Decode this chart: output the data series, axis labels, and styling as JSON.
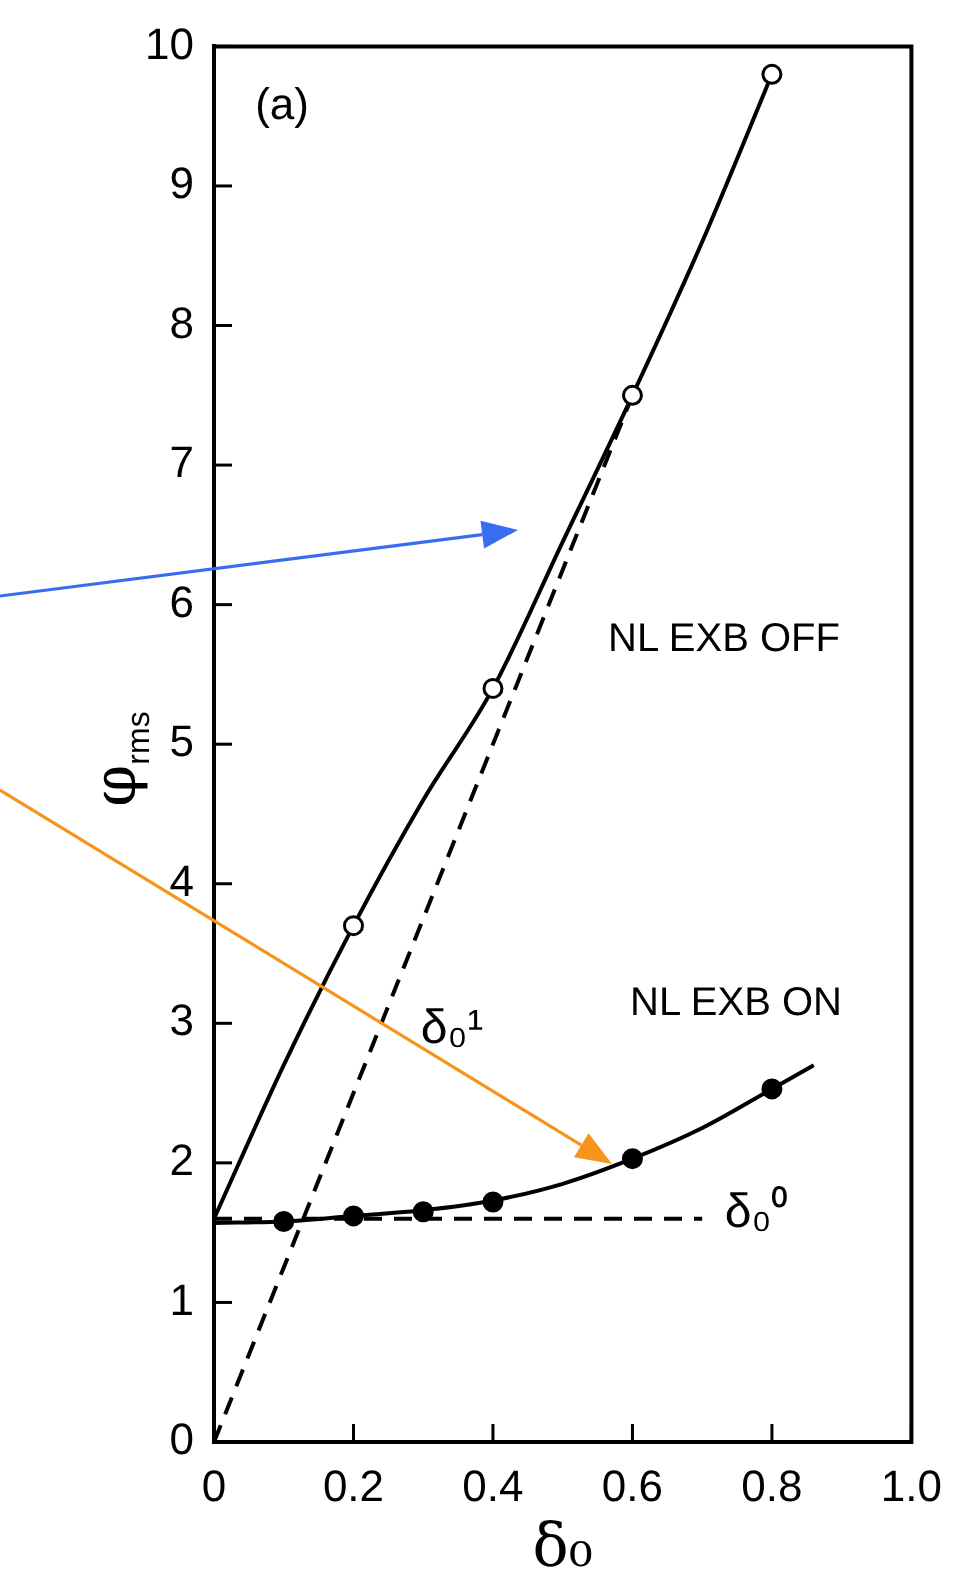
{
  "chart_data": {
    "type": "scatter",
    "xlabel": "δ₀",
    "ylabel": "φ$_{rms}$",
    "xlim": [
      0,
      1
    ],
    "ylim": [
      0,
      10
    ],
    "xticks": [
      0,
      0.2,
      0.4,
      0.6,
      0.8,
      {
        "value": 1,
        "label": "1.0"
      }
    ],
    "yticks": [
      0,
      1,
      2,
      3,
      4,
      5,
      6,
      7,
      8,
      9,
      10
    ],
    "grid": false,
    "legend": false,
    "annotations": [
      "(a)",
      "NL EXB OFF",
      "NL EXB ON",
      "δ₀¹",
      "δ₀⁰"
    ],
    "series": [
      {
        "marker": "circle",
        "color": "#ffffff",
        "x": [
          0.2,
          0.4,
          0.6,
          0.8
        ],
        "values": [
          3.7,
          5.4,
          7.5,
          9.8
        ]
      },
      {
        "type": "line",
        "marker": "none",
        "line_style": "solid",
        "color": "#000000",
        "x": [
          0,
          0.1,
          0.2,
          0.3,
          0.4,
          0.5,
          0.6,
          0.7,
          0.8
        ],
        "values": [
          1.6,
          2.7,
          3.7,
          4.6,
          5.4,
          6.45,
          7.5,
          8.6,
          9.8
        ]
      },
      {
        "marker": "circle",
        "color": "#000000",
        "x": [
          0.1,
          0.2,
          0.3,
          0.4,
          0.6,
          0.8
        ],
        "values": [
          1.58,
          1.62,
          1.65,
          1.72,
          2.03,
          2.53
        ]
      },
      {
        "type": "line",
        "marker": "none",
        "line_style": "solid",
        "color": "#000000",
        "x": [
          0,
          0.1,
          0.2,
          0.3,
          0.4,
          0.5,
          0.6,
          0.7,
          0.8,
          0.86
        ],
        "values": [
          1.57,
          1.58,
          1.62,
          1.66,
          1.73,
          1.85,
          2.03,
          2.25,
          2.53,
          2.7
        ]
      },
      {
        "type": "line",
        "marker": "none",
        "line_style": "dashed",
        "color": "#000000",
        "x": [
          0,
          0.6
        ],
        "values": [
          0,
          7.5
        ]
      },
      {
        "type": "line",
        "marker": "none",
        "line_style": "dashed",
        "color": "#000000",
        "x": [
          0,
          0.7
        ],
        "values": [
          1.6,
          1.6
        ]
      }
    ]
  }
}
